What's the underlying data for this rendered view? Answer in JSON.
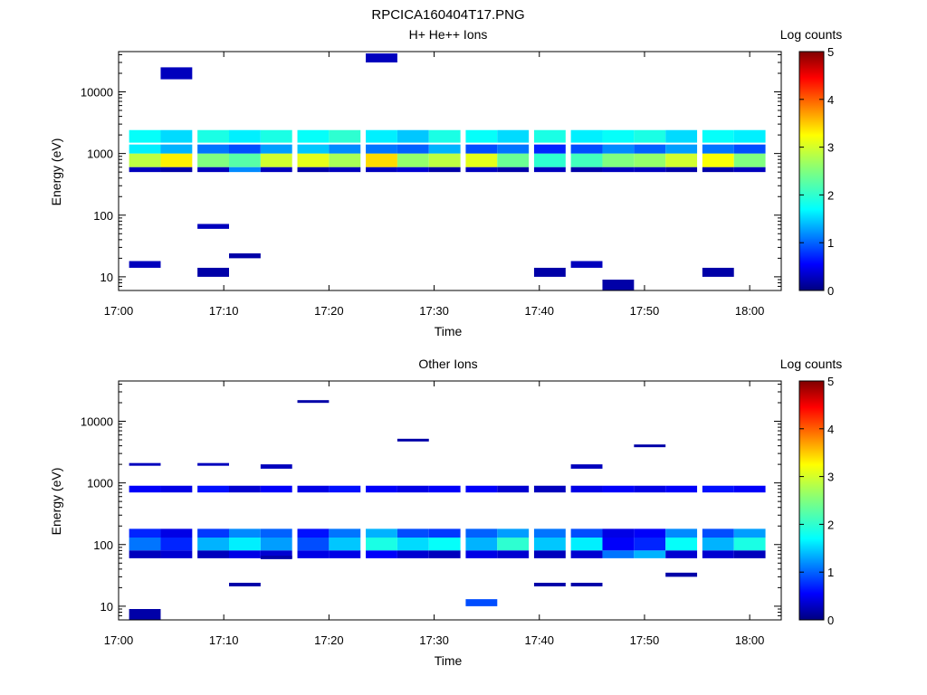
{
  "figure": {
    "title": "RPCICA160404T17.PNG"
  },
  "chart_data": [
    {
      "type": "heatmap",
      "title": "H+ He++ Ions",
      "xlabel": "Time",
      "ylabel": "Energy (eV)",
      "x_ticks": [
        "17:00",
        "17:10",
        "17:20",
        "17:30",
        "17:40",
        "17:50",
        "18:00"
      ],
      "x_range_minutes": [
        0,
        63
      ],
      "y_scale": "log",
      "y_range": [
        6,
        45000
      ],
      "y_ticks": [
        "10",
        "100",
        "1000",
        "10000"
      ],
      "colorbar": {
        "label": "Log counts",
        "range": [
          0,
          5
        ],
        "ticks": [
          "0",
          "1",
          "2",
          "3",
          "4",
          "5"
        ],
        "colormap": "jet"
      },
      "time_bins_minutes": [
        2.5,
        5.5,
        9,
        12,
        15,
        18.5,
        21.5,
        25,
        28,
        31,
        34.5,
        37.5,
        41,
        44.5,
        47.5,
        50.5,
        53.5,
        57,
        60
      ],
      "bands": [
        {
          "e_lo": 600,
          "e_hi": 1000,
          "pattern": [
            2.8,
            3.2,
            2.5,
            2.3,
            2.9,
            3.0,
            2.7,
            3.3,
            2.6,
            2.8,
            3.0,
            2.4,
            2.1,
            2.2,
            2.5,
            2.6,
            2.9,
            3.1,
            2.5
          ]
        },
        {
          "e_lo": 1000,
          "e_hi": 1400,
          "pattern": [
            1.8,
            1.5,
            1.2,
            1.0,
            1.4,
            1.6,
            1.3,
            1.2,
            1.1,
            1.5,
            1.0,
            1.2,
            0.8,
            1.0,
            1.3,
            1.1,
            1.4,
            1.2,
            1.0
          ]
        },
        {
          "e_lo": 1500,
          "e_hi": 2400,
          "pattern": [
            1.9,
            1.7,
            2.0,
            1.8,
            2.0,
            1.9,
            2.1,
            1.8,
            1.6,
            2.0,
            1.9,
            1.7,
            2.0,
            1.8,
            1.9,
            2.0,
            1.7,
            1.9,
            1.8
          ]
        },
        {
          "e_lo": 500,
          "e_hi": 600,
          "pattern": [
            0.3,
            0.2,
            0.3,
            1.3,
            0.3,
            0.2,
            0.3,
            0.3,
            0.4,
            0.2,
            0.3,
            0.2,
            0.3,
            0.2,
            0.3,
            0.3,
            0.2,
            0.2,
            0.3
          ]
        }
      ],
      "sparse": [
        {
          "t": 2.5,
          "e_lo": 14,
          "e_hi": 18,
          "v": 0.3
        },
        {
          "t": 9,
          "e_lo": 10,
          "e_hi": 14,
          "v": 0.2
        },
        {
          "t": 12,
          "e_lo": 20,
          "e_hi": 24,
          "v": 0.2
        },
        {
          "t": 41,
          "e_lo": 10,
          "e_hi": 14,
          "v": 0.2
        },
        {
          "t": 44.5,
          "e_lo": 14,
          "e_hi": 18,
          "v": 0.3
        },
        {
          "t": 47.5,
          "e_lo": 6,
          "e_hi": 9,
          "v": 0.2
        },
        {
          "t": 57,
          "e_lo": 10,
          "e_hi": 14,
          "v": 0.2
        },
        {
          "t": 9,
          "e_lo": 60,
          "e_hi": 72,
          "v": 0.3
        },
        {
          "t": 5.5,
          "e_lo": 16000,
          "e_hi": 25000,
          "v": 0.3
        },
        {
          "t": 25,
          "e_lo": 30000,
          "e_hi": 42000,
          "v": 0.3
        }
      ]
    },
    {
      "type": "heatmap",
      "title": "Other Ions",
      "xlabel": "Time",
      "ylabel": "Energy (eV)",
      "x_ticks": [
        "17:00",
        "17:10",
        "17:20",
        "17:30",
        "17:40",
        "17:50",
        "18:00"
      ],
      "x_range_minutes": [
        0,
        63
      ],
      "y_scale": "log",
      "y_range": [
        6,
        45000
      ],
      "y_ticks": [
        "10",
        "100",
        "1000",
        "10000"
      ],
      "colorbar": {
        "label": "Log counts",
        "range": [
          0,
          5
        ],
        "ticks": [
          "0",
          "1",
          "2",
          "3",
          "4",
          "5"
        ],
        "colormap": "jet"
      },
      "time_bins_minutes": [
        2.5,
        5.5,
        9,
        12,
        15,
        18.5,
        21.5,
        25,
        28,
        31,
        34.5,
        37.5,
        41,
        44.5,
        47.5,
        50.5,
        53.5,
        57,
        60
      ],
      "bands": [
        {
          "e_lo": 80,
          "e_hi": 130,
          "pattern": [
            1.2,
            0.8,
            1.5,
            1.8,
            1.4,
            1.0,
            1.6,
            2.0,
            1.7,
            1.9,
            1.5,
            2.1,
            1.6,
            1.8,
            0.6,
            0.8,
            1.9,
            1.5,
            2.0
          ]
        },
        {
          "e_lo": 130,
          "e_hi": 180,
          "pattern": [
            0.8,
            0.5,
            0.9,
            1.3,
            1.1,
            0.7,
            1.2,
            1.5,
            1.0,
            0.9,
            1.1,
            1.4,
            1.2,
            1.0,
            0.5,
            0.6,
            1.3,
            1.0,
            1.4
          ]
        },
        {
          "e_lo": 60,
          "e_hi": 80,
          "pattern": [
            0.3,
            0.4,
            0.3,
            0.5,
            0.4,
            0.5,
            0.5,
            0.6,
            0.4,
            0.3,
            0.5,
            0.4,
            0.3,
            0.4,
            1.2,
            1.5,
            0.4,
            0.4,
            0.3
          ]
        },
        {
          "e_lo": 700,
          "e_hi": 900,
          "pattern": [
            0.6,
            0.5,
            0.7,
            0.4,
            0.6,
            0.5,
            0.7,
            0.6,
            0.5,
            0.6,
            0.6,
            0.4,
            0.3,
            0.5,
            0.6,
            0.5,
            0.6,
            0.7,
            0.6
          ]
        }
      ],
      "sparse": [
        {
          "t": 2.5,
          "e_lo": 6,
          "e_hi": 9,
          "v": 0.2
        },
        {
          "t": 34.5,
          "e_lo": 10,
          "e_hi": 13,
          "v": 1.0
        },
        {
          "t": 41,
          "e_lo": 21,
          "e_hi": 24,
          "v": 0.2
        },
        {
          "t": 44.5,
          "e_lo": 21,
          "e_hi": 24,
          "v": 0.2
        },
        {
          "t": 12,
          "e_lo": 21,
          "e_hi": 24,
          "v": 0.2
        },
        {
          "t": 18.5,
          "e_lo": 20000,
          "e_hi": 22000,
          "v": 0.2
        },
        {
          "t": 28,
          "e_lo": 4800,
          "e_hi": 5200,
          "v": 0.2
        },
        {
          "t": 50.5,
          "e_lo": 3800,
          "e_hi": 4200,
          "v": 0.2
        },
        {
          "t": 2.5,
          "e_lo": 1900,
          "e_hi": 2100,
          "v": 0.3
        },
        {
          "t": 9,
          "e_lo": 1900,
          "e_hi": 2100,
          "v": 0.3
        },
        {
          "t": 15,
          "e_lo": 1700,
          "e_hi": 2000,
          "v": 0.3
        },
        {
          "t": 44.5,
          "e_lo": 1700,
          "e_hi": 2000,
          "v": 0.3
        },
        {
          "t": 53.5,
          "e_lo": 30,
          "e_hi": 35,
          "v": 0.2
        },
        {
          "t": 15,
          "e_lo": 58,
          "e_hi": 66,
          "v": 0.2
        }
      ]
    }
  ]
}
